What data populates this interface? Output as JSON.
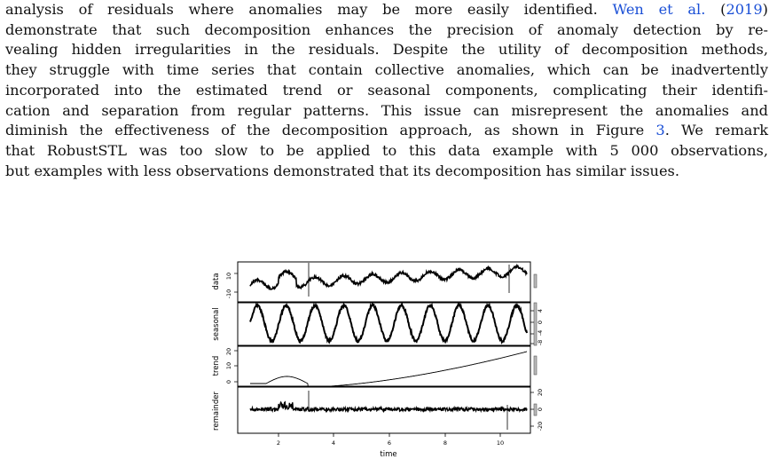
{
  "paragraph": {
    "l1_a": "analysis of residuals where anomalies may be more easily identified.",
    "l1_cite": "Wen et al.",
    "l1_year_open": "(",
    "l1_year": "2019",
    "l1_year_close": ")",
    "l2": "demonstrate that such decomposition enhances the precision of anomaly detection by re-",
    "l3": "vealing hidden irregularities in the residuals. Despite the utility of decomposition methods,",
    "l4": "they struggle with time series that contain collective anomalies, which can be inadvertently",
    "l5": "incorporated into the estimated trend or seasonal components, complicating their identifi-",
    "l6": "cation and separation from regular patterns. This issue can misrepresent the anomalies and",
    "l7_a": "diminish the effectiveness of the decomposition approach, as shown in Figure",
    "l7_ref": "3",
    "l7_b": ". We remark",
    "l8": "that RobustSTL was too slow to be applied to this data example with 5 000 observations,",
    "l9": "but examples with less observations demonstrated that its decomposition has similar issues."
  },
  "figure": {
    "panels": [
      {
        "label": "data",
        "ticks": [
          "10",
          "-10"
        ]
      },
      {
        "label": "seasonal",
        "ticks": [
          "4",
          "0",
          "-4",
          "-8"
        ]
      },
      {
        "label": "trend",
        "ticks": [
          "20",
          "10",
          "0"
        ]
      },
      {
        "label": "remainder",
        "ticks": [
          "20",
          "0",
          "-20"
        ]
      }
    ],
    "xticks": [
      "2",
      "4",
      "6",
      "8",
      "10"
    ],
    "xlabel": "time"
  },
  "colors": {
    "link": "#1a4fd6",
    "text": "#111111",
    "plot": "#000000"
  }
}
